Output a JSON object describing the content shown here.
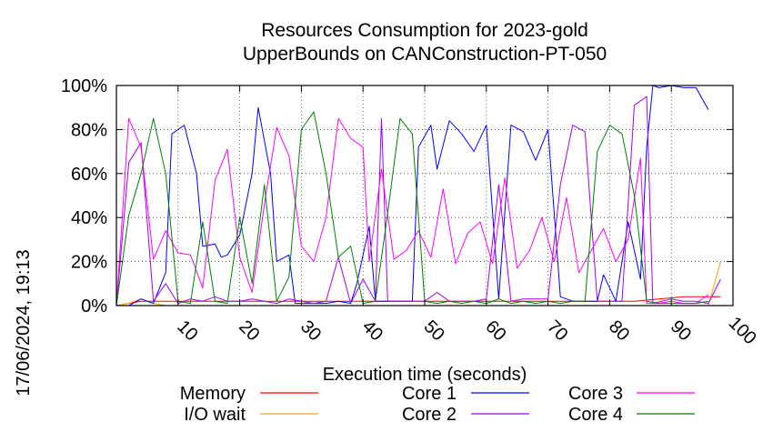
{
  "chart_data": {
    "type": "line",
    "title": "Resources Consumption for 2023-gold",
    "subtitle": "UpperBounds on CANConstruction-PT-050",
    "xlabel": "Execution time (seconds)",
    "ylabel": "",
    "xlim": [
      0,
      100
    ],
    "ylim": [
      0,
      100
    ],
    "x_ticks": [
      "10",
      "20",
      "30",
      "40",
      "50",
      "60",
      "70",
      "80",
      "90",
      "100"
    ],
    "y_ticks": [
      "0%",
      "20%",
      "40%",
      "60%",
      "80%",
      "100%"
    ],
    "grid": true,
    "legend_position": "bottom",
    "side_label": "17/06/2024, 19:13",
    "series": [
      {
        "name": "Memory",
        "color": "#ff0000",
        "points": [
          [
            0,
            0
          ],
          [
            2,
            1
          ],
          [
            4,
            2
          ],
          [
            10,
            2
          ],
          [
            20,
            2
          ],
          [
            30,
            2
          ],
          [
            40,
            2
          ],
          [
            50,
            2
          ],
          [
            60,
            2
          ],
          [
            70,
            2
          ],
          [
            80,
            2
          ],
          [
            84,
            2
          ],
          [
            88,
            3
          ],
          [
            92,
            4
          ],
          [
            98,
            4
          ]
        ]
      },
      {
        "name": "I/O wait",
        "color": "#ffa000",
        "points": [
          [
            0,
            0
          ],
          [
            2,
            1
          ],
          [
            4,
            3
          ],
          [
            6,
            1
          ],
          [
            8,
            0
          ],
          [
            20,
            0
          ],
          [
            40,
            0
          ],
          [
            60,
            0
          ],
          [
            80,
            0
          ],
          [
            90,
            0
          ],
          [
            96,
            0
          ],
          [
            98,
            20
          ]
        ]
      },
      {
        "name": "Core 1",
        "color": "#0000ff",
        "points": [
          [
            0,
            0
          ],
          [
            2,
            0
          ],
          [
            4,
            3
          ],
          [
            6,
            1
          ],
          [
            8,
            15
          ],
          [
            9,
            78
          ],
          [
            11,
            82
          ],
          [
            13,
            60
          ],
          [
            14,
            27
          ],
          [
            16,
            28
          ],
          [
            17,
            22
          ],
          [
            18,
            23
          ],
          [
            20,
            32
          ],
          [
            22,
            60
          ],
          [
            23,
            90
          ],
          [
            25,
            60
          ],
          [
            26,
            20
          ],
          [
            28,
            23
          ],
          [
            29,
            1
          ],
          [
            31,
            1
          ],
          [
            34,
            1
          ],
          [
            36,
            2
          ],
          [
            38,
            1
          ],
          [
            39,
            10
          ],
          [
            41,
            36
          ],
          [
            42,
            2
          ],
          [
            44,
            2
          ],
          [
            46,
            2
          ],
          [
            48,
            2
          ],
          [
            49,
            72
          ],
          [
            51,
            82
          ],
          [
            52,
            62
          ],
          [
            54,
            84
          ],
          [
            56,
            78
          ],
          [
            58,
            70
          ],
          [
            60,
            82
          ],
          [
            62,
            3
          ],
          [
            64,
            82
          ],
          [
            66,
            79
          ],
          [
            68,
            66
          ],
          [
            70,
            80
          ],
          [
            72,
            4
          ],
          [
            74,
            2
          ],
          [
            76,
            2
          ],
          [
            78,
            2
          ],
          [
            79,
            14
          ],
          [
            81,
            2
          ],
          [
            83,
            38
          ],
          [
            85,
            12
          ],
          [
            86,
            72
          ],
          [
            87,
            100
          ],
          [
            88,
            99
          ],
          [
            90,
            100
          ],
          [
            92,
            99
          ],
          [
            94,
            99
          ],
          [
            96,
            89
          ]
        ]
      },
      {
        "name": "Core 2",
        "color": "#a000ff",
        "points": [
          [
            0,
            0
          ],
          [
            2,
            65
          ],
          [
            4,
            74
          ],
          [
            6,
            2
          ],
          [
            8,
            10
          ],
          [
            10,
            1
          ],
          [
            12,
            3
          ],
          [
            14,
            2
          ],
          [
            16,
            4
          ],
          [
            18,
            2
          ],
          [
            20,
            2
          ],
          [
            22,
            3
          ],
          [
            24,
            2
          ],
          [
            26,
            1
          ],
          [
            28,
            3
          ],
          [
            30,
            2
          ],
          [
            32,
            1
          ],
          [
            34,
            2
          ],
          [
            36,
            22
          ],
          [
            38,
            1
          ],
          [
            40,
            12
          ],
          [
            42,
            2
          ],
          [
            43,
            85
          ],
          [
            44,
            2
          ],
          [
            46,
            2
          ],
          [
            48,
            2
          ],
          [
            50,
            2
          ],
          [
            52,
            6
          ],
          [
            54,
            2
          ],
          [
            56,
            2
          ],
          [
            58,
            2
          ],
          [
            60,
            3
          ],
          [
            62,
            55
          ],
          [
            64,
            2
          ],
          [
            66,
            3
          ],
          [
            68,
            3
          ],
          [
            70,
            3
          ],
          [
            72,
            55
          ],
          [
            74,
            82
          ],
          [
            76,
            79
          ],
          [
            78,
            2
          ],
          [
            80,
            2
          ],
          [
            82,
            2
          ],
          [
            84,
            91
          ],
          [
            86,
            95
          ],
          [
            87,
            1
          ],
          [
            90,
            3
          ],
          [
            92,
            2
          ],
          [
            94,
            2
          ],
          [
            96,
            1
          ],
          [
            98,
            12
          ]
        ]
      },
      {
        "name": "Core 3",
        "color": "#ff00ff",
        "points": [
          [
            0,
            0
          ],
          [
            2,
            85
          ],
          [
            4,
            72
          ],
          [
            6,
            21
          ],
          [
            8,
            34
          ],
          [
            10,
            24
          ],
          [
            12,
            23
          ],
          [
            14,
            8
          ],
          [
            16,
            57
          ],
          [
            18,
            71
          ],
          [
            20,
            22
          ],
          [
            22,
            6
          ],
          [
            24,
            46
          ],
          [
            26,
            81
          ],
          [
            28,
            68
          ],
          [
            30,
            27
          ],
          [
            32,
            20
          ],
          [
            34,
            40
          ],
          [
            36,
            85
          ],
          [
            38,
            76
          ],
          [
            40,
            72
          ],
          [
            41,
            20
          ],
          [
            43,
            62
          ],
          [
            45,
            21
          ],
          [
            47,
            25
          ],
          [
            49,
            34
          ],
          [
            51,
            22
          ],
          [
            53,
            53
          ],
          [
            55,
            19
          ],
          [
            57,
            33
          ],
          [
            59,
            38
          ],
          [
            61,
            19
          ],
          [
            63,
            58
          ],
          [
            65,
            17
          ],
          [
            67,
            25
          ],
          [
            69,
            40
          ],
          [
            71,
            20
          ],
          [
            73,
            49
          ],
          [
            75,
            15
          ],
          [
            77,
            25
          ],
          [
            79,
            35
          ],
          [
            81,
            20
          ],
          [
            83,
            30
          ],
          [
            85,
            67
          ],
          [
            86,
            1
          ],
          [
            88,
            1
          ],
          [
            90,
            2
          ],
          [
            92,
            1
          ],
          [
            94,
            1
          ],
          [
            96,
            5
          ]
        ]
      },
      {
        "name": "Core 4",
        "color": "#008000",
        "points": [
          [
            0,
            0
          ],
          [
            2,
            41
          ],
          [
            4,
            60
          ],
          [
            6,
            85
          ],
          [
            8,
            60
          ],
          [
            10,
            2
          ],
          [
            12,
            1
          ],
          [
            14,
            38
          ],
          [
            16,
            2
          ],
          [
            18,
            1
          ],
          [
            20,
            40
          ],
          [
            22,
            10
          ],
          [
            24,
            55
          ],
          [
            26,
            2
          ],
          [
            28,
            13
          ],
          [
            30,
            80
          ],
          [
            32,
            88
          ],
          [
            34,
            60
          ],
          [
            36,
            22
          ],
          [
            38,
            27
          ],
          [
            40,
            1
          ],
          [
            42,
            2
          ],
          [
            44,
            42
          ],
          [
            46,
            85
          ],
          [
            48,
            78
          ],
          [
            50,
            2
          ],
          [
            52,
            1
          ],
          [
            54,
            2
          ],
          [
            56,
            1
          ],
          [
            58,
            2
          ],
          [
            60,
            1
          ],
          [
            62,
            3
          ],
          [
            64,
            1
          ],
          [
            66,
            2
          ],
          [
            68,
            1
          ],
          [
            70,
            2
          ],
          [
            72,
            1
          ],
          [
            74,
            2
          ],
          [
            76,
            2
          ],
          [
            78,
            70
          ],
          [
            80,
            82
          ],
          [
            82,
            78
          ],
          [
            84,
            50
          ],
          [
            86,
            2
          ],
          [
            88,
            1
          ],
          [
            90,
            1
          ],
          [
            92,
            1
          ],
          [
            94,
            1
          ],
          [
            96,
            2
          ]
        ]
      }
    ]
  }
}
